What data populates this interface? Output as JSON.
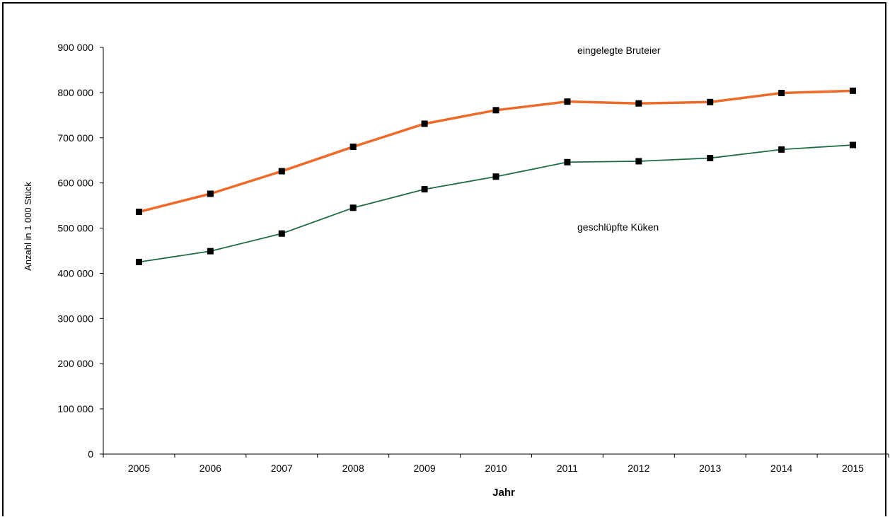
{
  "chart_data": {
    "type": "line",
    "title": "",
    "xlabel": "Jahr",
    "ylabel": "Anzahl in 1 000 Stück",
    "categories": [
      "2005",
      "2006",
      "2007",
      "2008",
      "2009",
      "2010",
      "2011",
      "2012",
      "2013",
      "2014",
      "2015"
    ],
    "ylim": [
      0,
      900000
    ],
    "y_ticks": [
      0,
      100000,
      200000,
      300000,
      400000,
      500000,
      600000,
      700000,
      800000,
      900000
    ],
    "y_tick_labels": [
      "0",
      "100 000",
      "200 000",
      "300 000",
      "400 000",
      "500 000",
      "600 000",
      "700 000",
      "800 000",
      "900 000"
    ],
    "grid": false,
    "series": [
      {
        "name": "eingelegte Bruteier",
        "color": "#ED6B2A",
        "values": [
          536000,
          576000,
          626000,
          680000,
          731000,
          761000,
          780000,
          776000,
          779000,
          799000,
          804000
        ]
      },
      {
        "name": "geschlüpfte Küken",
        "color": "#1E6B45",
        "values": [
          425000,
          449000,
          488000,
          545000,
          586000,
          614000,
          646000,
          648000,
          655000,
          674000,
          684000
        ]
      }
    ]
  }
}
